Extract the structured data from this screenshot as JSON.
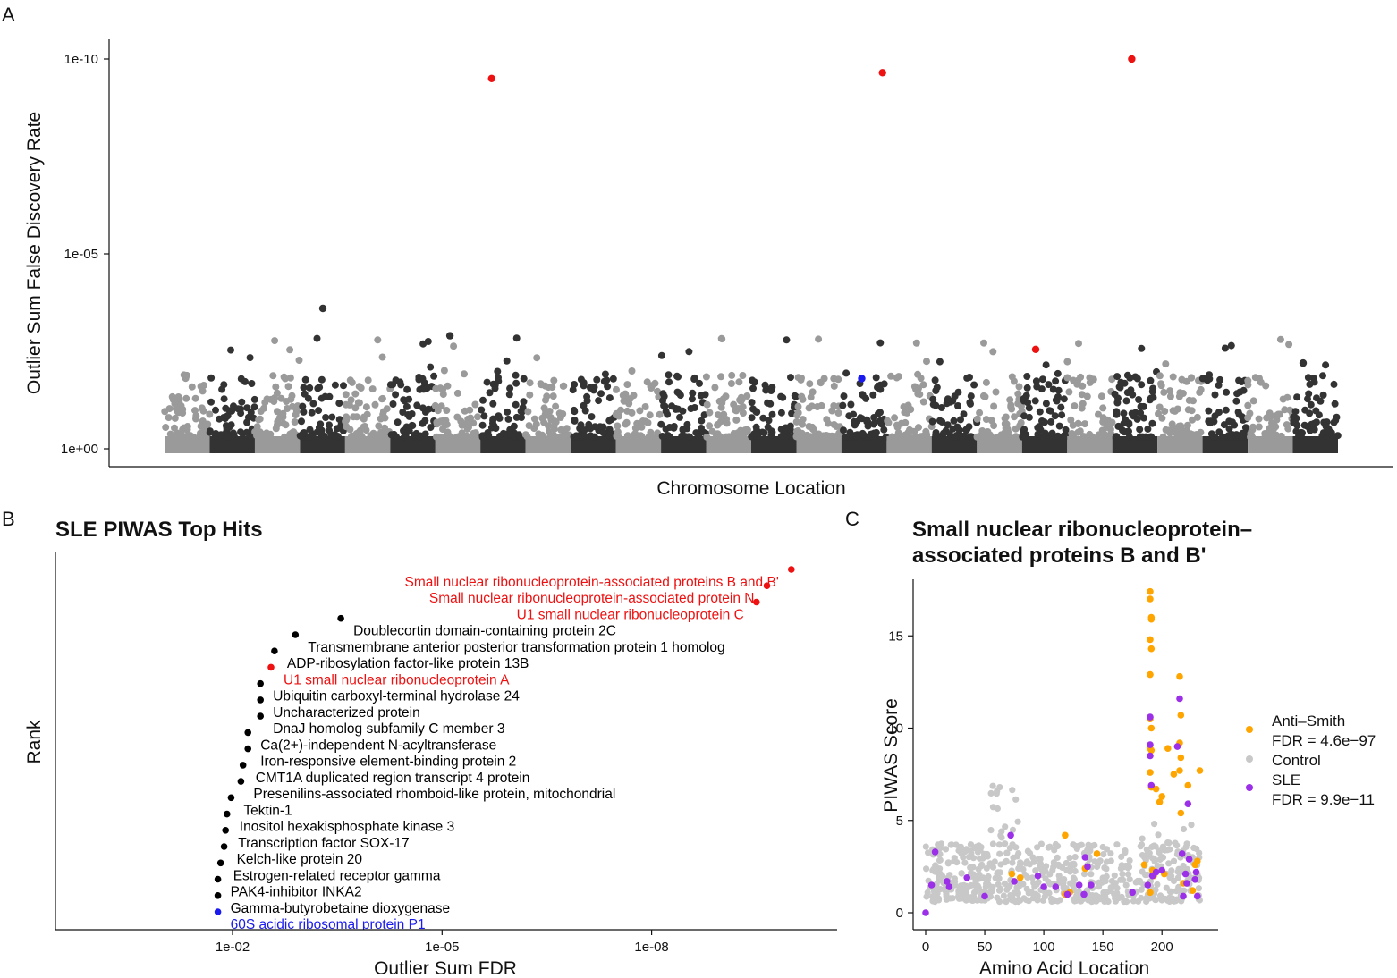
{
  "panels": {
    "a": "A",
    "b": "B",
    "c": "C"
  },
  "colors": {
    "highlight": "#ee1111",
    "reference": "#1a1aee",
    "dark": "#333333",
    "light": "#9a9a9a",
    "anti_smith": "#ffa500",
    "control": "#c8c8c8",
    "sle": "#9b30e8"
  },
  "chart_data": [
    {
      "id": "manhattan",
      "type": "scatter",
      "title": "",
      "xlabel": "Chromosome Location",
      "ylabel": "Outlier Sum False Discovery Rate",
      "y_scale": "log10-reversed",
      "y_ticks": [
        {
          "label": "1e-10",
          "exponent": -10
        },
        {
          "label": "1e-05",
          "exponent": -5
        },
        {
          "label": "1e+00",
          "exponent": 0
        }
      ],
      "ylim_neglog10": [
        0,
        10.5
      ],
      "chromosomes": 26,
      "background_points_note": "thousands of points near FDR 1e+00, alternating dark/light gray by chromosome",
      "highlighted_points": [
        {
          "position": 0.2787,
          "neglog10_fdr": 9.5,
          "color": "red"
        },
        {
          "position": 0.6118,
          "neglog10_fdr": 9.65,
          "color": "red"
        },
        {
          "position": 0.8242,
          "neglog10_fdr": 10.0,
          "color": "red"
        },
        {
          "position": 0.7424,
          "neglog10_fdr": 2.55,
          "color": "red"
        },
        {
          "position": 0.5941,
          "neglog10_fdr": 1.8,
          "color": "blue"
        },
        {
          "position": 0.1349,
          "neglog10_fdr": 3.6,
          "color": "dark"
        },
        {
          "position": 0.2432,
          "neglog10_fdr": 2.9,
          "color": "dark"
        },
        {
          "position": 0.9703,
          "neglog10_fdr": 2.2,
          "color": "dark"
        }
      ]
    },
    {
      "id": "top-hits",
      "type": "scatter",
      "title": "SLE PIWAS Top Hits",
      "xlabel": "Outlier Sum FDR",
      "ylabel": "Rank",
      "x_scale": "log10-reversed",
      "x_ticks": [
        {
          "label": "1e-02",
          "exponent": -2
        },
        {
          "label": "1e-05",
          "exponent": -5
        },
        {
          "label": "1e-08",
          "exponent": -8
        }
      ],
      "points": [
        {
          "label": "Small nuclear ribonucleoprotein-associated proteins B and B'",
          "neglog10_fdr": 10.0,
          "color": "red"
        },
        {
          "label": "Small nuclear ribonucleoprotein-associated protein N",
          "neglog10_fdr": 9.65,
          "color": "red"
        },
        {
          "label": "U1 small nuclear ribonucleoprotein C",
          "neglog10_fdr": 9.5,
          "color": "red"
        },
        {
          "label": "Doublecortin domain-containing protein 2C",
          "neglog10_fdr": 3.55,
          "color": "black"
        },
        {
          "label": "Transmembrane anterior posterior transformation protein 1 homolog",
          "neglog10_fdr": 2.9,
          "color": "black"
        },
        {
          "label": "ADP-ribosylation factor-like protein 13B",
          "neglog10_fdr": 2.6,
          "color": "black"
        },
        {
          "label": "U1 small nuclear ribonucleoprotein A",
          "neglog10_fdr": 2.55,
          "color": "red"
        },
        {
          "label": "Ubiquitin carboxyl-terminal hydrolase 24",
          "neglog10_fdr": 2.4,
          "color": "black"
        },
        {
          "label": "Uncharacterized protein",
          "neglog10_fdr": 2.4,
          "color": "black"
        },
        {
          "label": "DnaJ homolog subfamily C member 3",
          "neglog10_fdr": 2.4,
          "color": "black"
        },
        {
          "label": "Ca(2+)-independent N-acyltransferase",
          "neglog10_fdr": 2.22,
          "color": "black"
        },
        {
          "label": "Iron-responsive element-binding protein 2",
          "neglog10_fdr": 2.22,
          "color": "black"
        },
        {
          "label": "CMT1A duplicated region transcript 4 protein",
          "neglog10_fdr": 2.15,
          "color": "black"
        },
        {
          "label": "Presenilins-associated rhomboid-like protein, mitochondrial",
          "neglog10_fdr": 2.12,
          "color": "black"
        },
        {
          "label": "Tektin-1",
          "neglog10_fdr": 1.98,
          "color": "black"
        },
        {
          "label": "Inositol hexakisphosphate kinase 3",
          "neglog10_fdr": 1.92,
          "color": "black"
        },
        {
          "label": "Transcription factor SOX-17",
          "neglog10_fdr": 1.9,
          "color": "black"
        },
        {
          "label": "Kelch-like protein 20",
          "neglog10_fdr": 1.88,
          "color": "black"
        },
        {
          "label": "Estrogen-related receptor gamma",
          "neglog10_fdr": 1.83,
          "color": "black"
        },
        {
          "label": "PAK4-inhibitor INKA2",
          "neglog10_fdr": 1.79,
          "color": "black"
        },
        {
          "label": "Gamma-butyrobetaine dioxygenase",
          "neglog10_fdr": 1.79,
          "color": "black"
        },
        {
          "label": "60S acidic ribosomal protein P1",
          "neglog10_fdr": 1.79,
          "color": "blue"
        }
      ]
    },
    {
      "id": "snrpb-detail",
      "type": "scatter",
      "title_lines": [
        "Small nuclear ribonucleoprotein–",
        "associated proteins B and B'"
      ],
      "xlabel": "Amino Acid Location",
      "ylabel": "PIWAS Score",
      "x_ticks": [
        0,
        50,
        100,
        150,
        200
      ],
      "y_ticks": [
        0,
        5,
        10,
        15
      ],
      "xlim": [
        -10,
        245
      ],
      "ylim": [
        -0.8,
        18.3
      ],
      "legend": [
        {
          "name": "Anti–Smith",
          "detail": "FDR = 4.6e−97",
          "color": "orange"
        },
        {
          "name": "Control",
          "detail": "",
          "color": "gray"
        },
        {
          "name": "SLE",
          "detail": "FDR = 9.9e−11",
          "color": "purple"
        }
      ],
      "control_points_note": "dense gray cloud, scores 0.5-4 across positions 0-232, up to ~7 around 55-80",
      "series": [
        {
          "name": "Anti-Smith",
          "points": [
            [
              73,
              2.1
            ],
            [
              80,
              1.9
            ],
            [
              118,
              4.2
            ],
            [
              122,
              1.1
            ],
            [
              135,
              2.4
            ],
            [
              145,
              3.2
            ],
            [
              185,
              2.6
            ],
            [
              190,
              17.4
            ],
            [
              190,
              17.0
            ],
            [
              191,
              16.0
            ],
            [
              191,
              15.9
            ],
            [
              190,
              14.8
            ],
            [
              191,
              14.3
            ],
            [
              190,
              12.9
            ],
            [
              190,
              10.5
            ],
            [
              191,
              10.0
            ],
            [
              190,
              8.9
            ],
            [
              191,
              8.8
            ],
            [
              190,
              7.6
            ],
            [
              191,
              6.8
            ],
            [
              192,
              2.3
            ],
            [
              193,
              2.0
            ],
            [
              195,
              6.7
            ],
            [
              198,
              6.0
            ],
            [
              200,
              6.3
            ],
            [
              202,
              2.1
            ],
            [
              205,
              8.9
            ],
            [
              210,
              7.5
            ],
            [
              215,
              12.8
            ],
            [
              216,
              10.7
            ],
            [
              215,
              9.2
            ],
            [
              216,
              8.4
            ],
            [
              215,
              7.7
            ],
            [
              216,
              5.4
            ],
            [
              218,
              1.6
            ],
            [
              222,
              6.9
            ],
            [
              226,
              1.2
            ],
            [
              228,
              2.6
            ],
            [
              230,
              2.8
            ],
            [
              232,
              7.7
            ],
            [
              190,
              1.1
            ],
            [
              118,
              1.0
            ]
          ]
        },
        {
          "name": "SLE",
          "points": [
            [
              0,
              0.0
            ],
            [
              5,
              1.5
            ],
            [
              8,
              3.3
            ],
            [
              18,
              1.7
            ],
            [
              20,
              1.4
            ],
            [
              35,
              1.9
            ],
            [
              50,
              0.9
            ],
            [
              72,
              4.2
            ],
            [
              75,
              1.7
            ],
            [
              95,
              2.0
            ],
            [
              100,
              1.4
            ],
            [
              110,
              1.4
            ],
            [
              120,
              1.0
            ],
            [
              130,
              1.5
            ],
            [
              134,
              1.0
            ],
            [
              135,
              3.0
            ],
            [
              137,
              2.5
            ],
            [
              140,
              1.5
            ],
            [
              175,
              1.1
            ],
            [
              190,
              10.6
            ],
            [
              190,
              9.1
            ],
            [
              190,
              8.5
            ],
            [
              191,
              6.9
            ],
            [
              195,
              2.2
            ],
            [
              200,
              2.3
            ],
            [
              213,
              9.0
            ],
            [
              215,
              11.6
            ],
            [
              217,
              3.2
            ],
            [
              218,
              0.9
            ],
            [
              220,
              2.1
            ],
            [
              221,
              1.6
            ],
            [
              222,
              5.9
            ],
            [
              223,
              2.9
            ],
            [
              229,
              2.2
            ],
            [
              230,
              0.9
            ],
            [
              188,
              1.5
            ],
            [
              192,
              2.0
            ],
            [
              228,
              1.8
            ]
          ]
        }
      ]
    }
  ]
}
